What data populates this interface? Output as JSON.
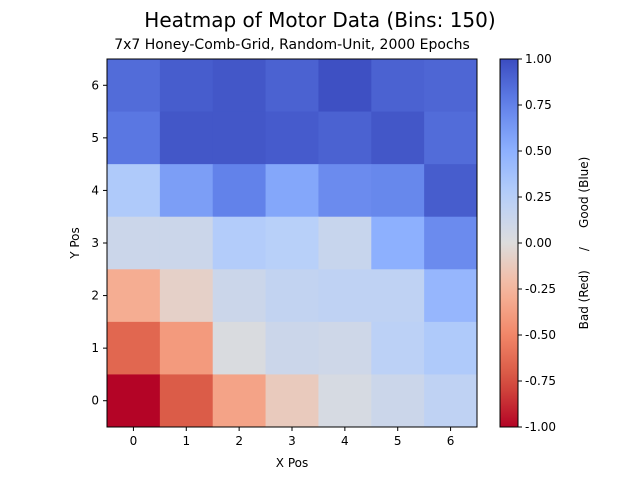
{
  "chart_data": {
    "type": "heatmap",
    "title": "Heatmap of Motor Data (Bins: 150)",
    "subtitle": "7x7 Honey-Comb-Grid, Random-Unit, 2000 Epochs",
    "xlabel": "X Pos",
    "ylabel": "Y Pos",
    "x_ticks": [
      "0",
      "1",
      "2",
      "3",
      "4",
      "5",
      "6"
    ],
    "y_ticks": [
      "0",
      "1",
      "2",
      "3",
      "4",
      "5",
      "6"
    ],
    "colorbar": {
      "label": "Bad (Red)     /     Good (Blue)",
      "vmin": -1.0,
      "vmax": 1.0,
      "ticks": [
        "-1.00",
        "-0.75",
        "-0.50",
        "-0.25",
        "0.00",
        "0.25",
        "0.50",
        "0.75",
        "1.00"
      ],
      "tick_values": [
        -1.0,
        -0.75,
        -0.5,
        -0.25,
        0.0,
        0.25,
        0.5,
        0.75,
        1.0
      ],
      "colormap": "coolwarm_r"
    },
    "rows_y_descending": [
      {
        "y": 6,
        "values": [
          0.85,
          0.92,
          0.95,
          0.9,
          0.98,
          0.9,
          0.88
        ]
      },
      {
        "y": 5,
        "values": [
          0.8,
          0.95,
          0.95,
          0.93,
          0.9,
          0.95,
          0.85
        ]
      },
      {
        "y": 4,
        "values": [
          0.3,
          0.6,
          0.75,
          0.55,
          0.7,
          0.72,
          0.92
        ]
      },
      {
        "y": 3,
        "values": [
          0.12,
          0.12,
          0.28,
          0.25,
          0.15,
          0.5,
          0.7
        ]
      },
      {
        "y": 2,
        "values": [
          -0.3,
          -0.08,
          0.12,
          0.18,
          0.2,
          0.2,
          0.45
        ]
      },
      {
        "y": 1,
        "values": [
          -0.65,
          -0.4,
          0.03,
          0.12,
          0.1,
          0.22,
          0.3
        ]
      },
      {
        "y": 0,
        "values": [
          -1.0,
          -0.7,
          -0.35,
          -0.12,
          0.05,
          0.12,
          0.2
        ]
      }
    ]
  }
}
